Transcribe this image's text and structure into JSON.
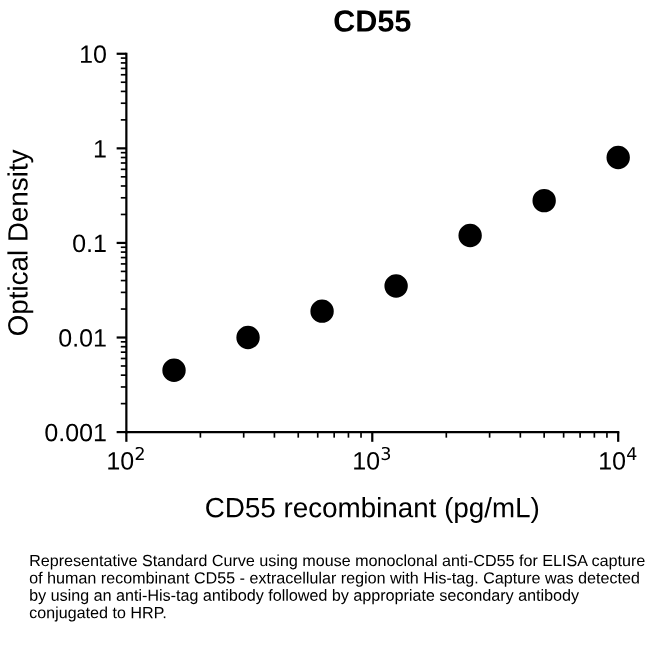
{
  "chart_data": {
    "type": "scatter",
    "title": "CD55",
    "xlabel": "CD55 recombinant (pg/mL)",
    "ylabel": "Optical Density",
    "x": [
      156.25,
      312.5,
      625,
      1250,
      2500,
      5000,
      10000
    ],
    "series": [
      {
        "color": "#000000",
        "values": [
          0.0045,
          0.01,
          0.019,
          0.035,
          0.12,
          0.28,
          0.8
        ]
      }
    ],
    "log": "xy",
    "marker": "circle",
    "grid": false,
    "legend": false,
    "xlim": [
      100,
      10000
    ],
    "ylim": [
      0.001,
      10
    ],
    "xticks": [
      {
        "value": 100,
        "label": "10$^{2}$"
      },
      {
        "value": 1000,
        "label": "10$^{3}$"
      },
      {
        "value": 10000,
        "label": "10$^{4}$"
      }
    ],
    "yticks": [
      {
        "value": 0.001,
        "label": "0.001"
      },
      {
        "value": 0.01,
        "label": "0.01"
      },
      {
        "value": 0.1,
        "label": "0.1"
      },
      {
        "value": 1,
        "label": "1"
      },
      {
        "value": 10,
        "label": "10"
      }
    ],
    "annotations": [
      "Representative Standard Curve using mouse monoclonal anti-CD55 for ELISA capture of human recombinant CD55 - extracellular region with His-tag. Capture was detected by using an anti-His-tag antibody followed by appropriate secondary antibody conjugated to HRP."
    ]
  }
}
